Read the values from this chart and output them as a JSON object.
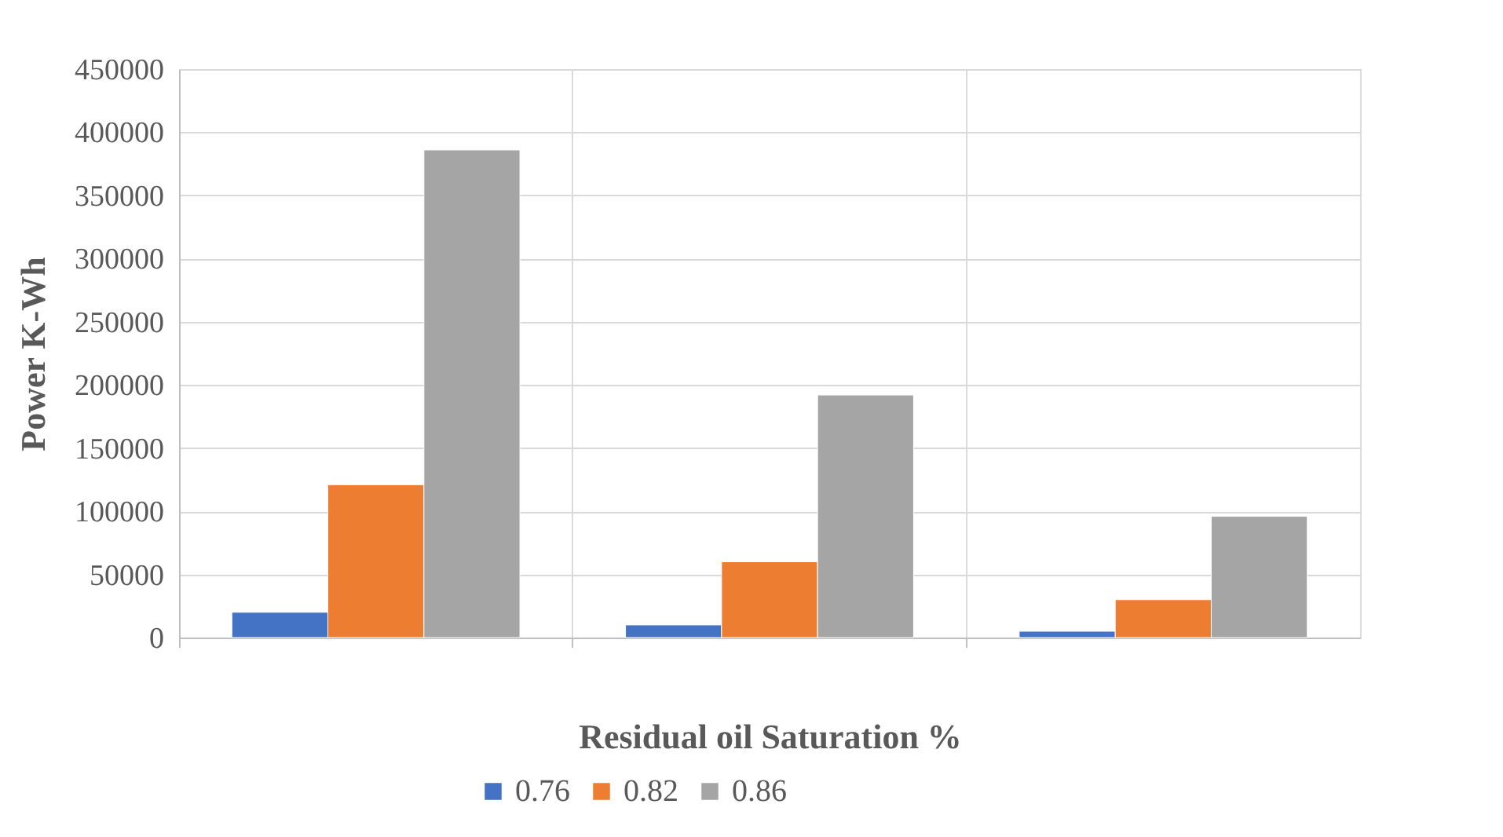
{
  "chart_data": {
    "type": "bar",
    "xlabel": "Residual oil Saturation %",
    "ylabel": "Power K-Wh",
    "categories": [
      null,
      null,
      null
    ],
    "series": [
      {
        "name": "0.76",
        "color": "#4472c4",
        "values": [
          20000,
          10000,
          5000
        ]
      },
      {
        "name": "0.82",
        "color": "#ed7d31",
        "values": [
          121000,
          60000,
          30000
        ]
      },
      {
        "name": "0.86",
        "color": "#a5a5a5",
        "values": [
          386000,
          192000,
          96000
        ]
      }
    ],
    "ylim": [
      0,
      450000
    ],
    "yticks": [
      0,
      50000,
      100000,
      150000,
      200000,
      250000,
      300000,
      350000,
      400000,
      450000
    ],
    "grid": true,
    "legend": "bottom"
  }
}
